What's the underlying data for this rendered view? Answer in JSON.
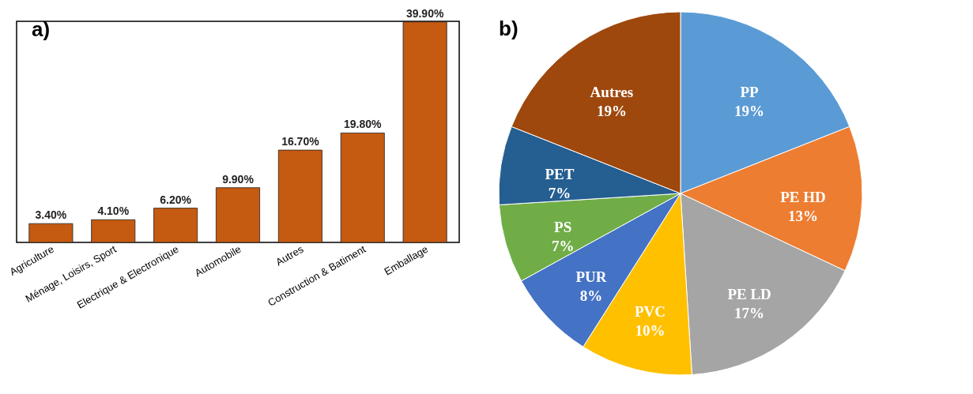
{
  "chart_data": [
    {
      "type": "bar",
      "title": "a)",
      "categories": [
        "Agriculture",
        "Ménage, Loisirs, Sport",
        "Electrique & Electronique",
        "Automobile",
        "Autres",
        "Construction & Batiment",
        "Emballage"
      ],
      "values": [
        3.4,
        4.1,
        6.2,
        9.9,
        16.7,
        19.8,
        39.9
      ],
      "value_labels": [
        "3.40%",
        "4.10%",
        "6.20%",
        "9.90%",
        "16.70%",
        "19.80%",
        "39.90%"
      ],
      "color": "#c55a11",
      "tick_labels": "x"
    },
    {
      "type": "pie",
      "title": "b)",
      "categories": [
        "PP",
        "PE HD",
        "PE LD",
        "PVC",
        "PUR",
        "PS",
        "PET",
        "Autres"
      ],
      "values": [
        19,
        13,
        17,
        10,
        8,
        7,
        7,
        19
      ],
      "value_labels": [
        "19%",
        "13%",
        "17%",
        "10%",
        "8%",
        "7%",
        "7%",
        "19%"
      ],
      "colors": [
        "#5b9bd5",
        "#ed7d31",
        "#a5a5a5",
        "#ffc000",
        "#4472c4",
        "#70ad47",
        "#255e91",
        "#9e480e"
      ],
      "legend": false
    }
  ]
}
